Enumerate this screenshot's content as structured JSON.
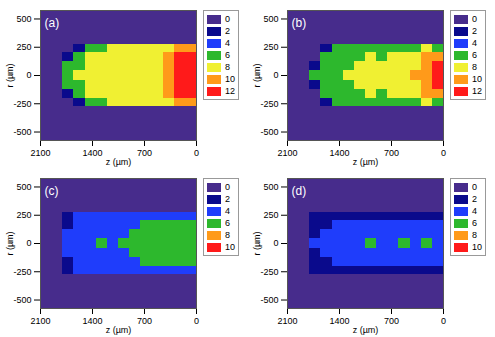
{
  "chart_data": [
    {
      "type": "heatmap",
      "title": "(a)",
      "x_label": "z (µm)",
      "y_label": "r (µm)",
      "xlim": [
        2100,
        0
      ],
      "ylim": [
        -575,
        575
      ],
      "xticks": [
        2100,
        1400,
        700,
        0
      ],
      "yticks": [
        500,
        250,
        0,
        -250,
        -500
      ],
      "z_bins": [
        0,
        150,
        300,
        450,
        600,
        750,
        900,
        1050,
        1200,
        1350,
        1500,
        1650,
        1800,
        1950,
        2100
      ],
      "r_bins": [
        -575,
        -275,
        -200,
        -125,
        -40,
        40,
        125,
        200,
        275,
        575
      ],
      "values": [
        [
          0,
          0,
          0,
          0,
          0,
          0,
          0,
          0,
          0,
          0,
          0,
          0,
          0,
          0
        ],
        [
          10,
          10,
          8,
          8,
          8,
          8,
          8,
          8,
          6,
          6,
          2,
          0,
          0,
          0
        ],
        [
          12,
          12,
          10,
          8,
          8,
          8,
          8,
          8,
          8,
          8,
          6,
          2,
          0,
          0
        ],
        [
          12,
          12,
          10,
          8,
          8,
          8,
          8,
          8,
          8,
          8,
          6,
          6,
          0,
          0
        ],
        [
          12,
          12,
          10,
          8,
          8,
          8,
          8,
          8,
          8,
          8,
          8,
          6,
          0,
          0
        ],
        [
          12,
          12,
          10,
          8,
          8,
          8,
          8,
          8,
          8,
          8,
          6,
          6,
          0,
          0
        ],
        [
          12,
          12,
          10,
          8,
          8,
          8,
          8,
          8,
          8,
          8,
          6,
          2,
          0,
          0
        ],
        [
          10,
          10,
          8,
          8,
          8,
          8,
          8,
          8,
          6,
          6,
          2,
          0,
          0,
          0
        ],
        [
          0,
          0,
          0,
          0,
          0,
          0,
          0,
          0,
          0,
          0,
          0,
          0,
          0,
          0
        ]
      ],
      "colorbar": {
        "levels": [
          0,
          2,
          4,
          6,
          8,
          10,
          12
        ],
        "colors": [
          "#472c8c",
          "#0a0a8c",
          "#1f3dfb",
          "#2db82d",
          "#f0f032",
          "#ff9a1a",
          "#ff1a1a"
        ]
      }
    },
    {
      "type": "heatmap",
      "title": "(b)",
      "x_label": "z (µm)",
      "y_label": "r (µm)",
      "xlim": [
        2100,
        0
      ],
      "ylim": [
        -575,
        575
      ],
      "xticks": [
        2100,
        1400,
        700,
        0
      ],
      "yticks": [
        500,
        250,
        0,
        -250,
        -500
      ],
      "z_bins": [
        0,
        150,
        300,
        450,
        600,
        750,
        900,
        1050,
        1200,
        1350,
        1500,
        1650,
        1800,
        1950,
        2100
      ],
      "r_bins": [
        -575,
        -275,
        -200,
        -125,
        -40,
        40,
        125,
        200,
        275,
        575
      ],
      "values": [
        [
          0,
          0,
          0,
          0,
          0,
          0,
          0,
          0,
          0,
          0,
          0,
          0,
          0,
          0
        ],
        [
          6,
          8,
          6,
          6,
          6,
          6,
          6,
          6,
          6,
          6,
          2,
          0,
          0,
          0
        ],
        [
          10,
          10,
          8,
          8,
          8,
          6,
          8,
          6,
          6,
          6,
          6,
          0,
          0,
          0
        ],
        [
          12,
          10,
          8,
          8,
          8,
          8,
          8,
          8,
          6,
          6,
          6,
          2,
          0,
          0
        ],
        [
          12,
          10,
          10,
          8,
          8,
          8,
          8,
          8,
          8,
          6,
          6,
          6,
          0,
          0
        ],
        [
          12,
          10,
          8,
          8,
          8,
          8,
          8,
          8,
          6,
          6,
          6,
          2,
          0,
          0
        ],
        [
          10,
          10,
          8,
          8,
          8,
          6,
          8,
          6,
          6,
          6,
          6,
          0,
          0,
          0
        ],
        [
          6,
          8,
          6,
          6,
          6,
          6,
          6,
          6,
          6,
          6,
          2,
          0,
          0,
          0
        ],
        [
          0,
          0,
          0,
          0,
          0,
          0,
          0,
          0,
          0,
          0,
          0,
          0,
          0,
          0
        ]
      ],
      "colorbar": {
        "levels": [
          0,
          2,
          4,
          6,
          8,
          10,
          12
        ],
        "colors": [
          "#472c8c",
          "#0a0a8c",
          "#1f3dfb",
          "#2db82d",
          "#f0f032",
          "#ff9a1a",
          "#ff1a1a"
        ]
      }
    },
    {
      "type": "heatmap",
      "title": "(c)",
      "x_label": "z (µm)",
      "y_label": "r (µm)",
      "xlim": [
        2100,
        0
      ],
      "ylim": [
        -575,
        575
      ],
      "xticks": [
        2100,
        1400,
        700,
        0
      ],
      "yticks": [
        500,
        250,
        0,
        -250,
        -500
      ],
      "z_bins": [
        0,
        150,
        300,
        450,
        600,
        750,
        900,
        1050,
        1200,
        1350,
        1500,
        1650,
        1800,
        1950,
        2100
      ],
      "r_bins": [
        -575,
        -275,
        -200,
        -125,
        -40,
        40,
        125,
        200,
        275,
        575
      ],
      "values": [
        [
          0,
          0,
          0,
          0,
          0,
          0,
          0,
          0,
          0,
          0,
          0,
          0,
          0,
          0
        ],
        [
          4,
          4,
          4,
          4,
          4,
          4,
          4,
          4,
          4,
          4,
          4,
          2,
          0,
          0
        ],
        [
          6,
          6,
          6,
          6,
          6,
          4,
          4,
          4,
          4,
          4,
          4,
          2,
          0,
          0
        ],
        [
          6,
          6,
          6,
          6,
          6,
          6,
          4,
          4,
          4,
          4,
          4,
          4,
          0,
          0
        ],
        [
          6,
          6,
          6,
          6,
          6,
          6,
          6,
          4,
          6,
          4,
          4,
          4,
          0,
          0
        ],
        [
          6,
          6,
          6,
          6,
          6,
          6,
          4,
          4,
          4,
          4,
          4,
          4,
          0,
          0
        ],
        [
          6,
          6,
          6,
          6,
          6,
          4,
          4,
          4,
          4,
          4,
          4,
          2,
          0,
          0
        ],
        [
          4,
          4,
          4,
          4,
          4,
          4,
          4,
          4,
          4,
          4,
          4,
          2,
          0,
          0
        ],
        [
          0,
          0,
          0,
          0,
          0,
          0,
          0,
          0,
          0,
          0,
          0,
          0,
          0,
          0
        ]
      ],
      "colorbar": {
        "levels": [
          0,
          2,
          4,
          6,
          8,
          10
        ],
        "colors": [
          "#472c8c",
          "#0a0a8c",
          "#1f3dfb",
          "#2db82d",
          "#ff9a1a",
          "#ff1a1a"
        ]
      }
    },
    {
      "type": "heatmap",
      "title": "(d)",
      "x_label": "z (µm)",
      "y_label": "r (µm)",
      "xlim": [
        2100,
        0
      ],
      "ylim": [
        -575,
        575
      ],
      "xticks": [
        2100,
        1400,
        700,
        0
      ],
      "yticks": [
        500,
        250,
        0,
        -250,
        -500
      ],
      "z_bins": [
        0,
        150,
        300,
        450,
        600,
        750,
        900,
        1050,
        1200,
        1350,
        1500,
        1650,
        1800,
        1950,
        2100
      ],
      "r_bins": [
        -575,
        -275,
        -200,
        -125,
        -40,
        40,
        125,
        200,
        275,
        575
      ],
      "values": [
        [
          0,
          0,
          0,
          0,
          0,
          0,
          0,
          0,
          0,
          0,
          0,
          0,
          0,
          0
        ],
        [
          2,
          2,
          2,
          2,
          2,
          2,
          2,
          2,
          2,
          2,
          2,
          2,
          0,
          0
        ],
        [
          4,
          4,
          4,
          4,
          4,
          4,
          4,
          4,
          4,
          4,
          2,
          2,
          0,
          0
        ],
        [
          4,
          4,
          4,
          4,
          4,
          4,
          4,
          4,
          4,
          4,
          4,
          2,
          0,
          0
        ],
        [
          4,
          6,
          4,
          6,
          4,
          4,
          6,
          4,
          4,
          4,
          4,
          4,
          0,
          0
        ],
        [
          4,
          4,
          4,
          4,
          4,
          4,
          4,
          4,
          4,
          4,
          4,
          2,
          0,
          0
        ],
        [
          4,
          4,
          4,
          4,
          4,
          4,
          4,
          4,
          4,
          4,
          2,
          2,
          0,
          0
        ],
        [
          2,
          2,
          2,
          2,
          2,
          2,
          2,
          2,
          2,
          2,
          2,
          2,
          0,
          0
        ],
        [
          0,
          0,
          0,
          0,
          0,
          0,
          0,
          0,
          0,
          0,
          0,
          0,
          0,
          0
        ]
      ],
      "colorbar": {
        "levels": [
          0,
          2,
          4,
          6,
          8,
          10
        ],
        "colors": [
          "#472c8c",
          "#0a0a8c",
          "#1f3dfb",
          "#2db82d",
          "#ff9a1a",
          "#ff1a1a"
        ]
      }
    }
  ]
}
